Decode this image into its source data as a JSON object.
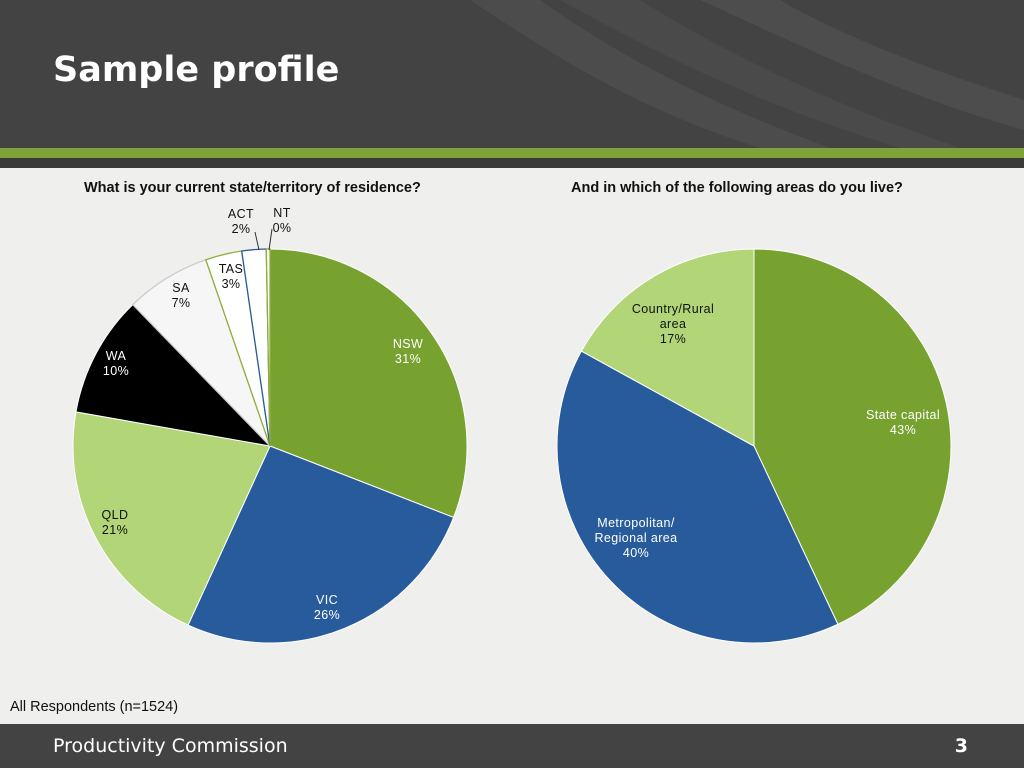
{
  "slide": {
    "title": "Sample profile",
    "footnote": "All Respondents (n=1524)",
    "footer_org": "Productivity Commission",
    "page_number": "3"
  },
  "chart_data": [
    {
      "type": "pie",
      "title": "What is your current state/territory of residence?",
      "start_angle_deg": 0,
      "direction": "clockwise",
      "slices": [
        {
          "label": "NSW",
          "value": 31,
          "display": "31%",
          "color": "#78a22f"
        },
        {
          "label": "VIC",
          "value": 26,
          "display": "26%",
          "color": "#275b9b"
        },
        {
          "label": "QLD",
          "value": 21,
          "display": "21%",
          "color": "#b2d677"
        },
        {
          "label": "WA",
          "value": 10,
          "display": "10%",
          "color": "#000000"
        },
        {
          "label": "SA",
          "value": 7,
          "display": "7%",
          "color": "#f6f6f6"
        },
        {
          "label": "TAS",
          "value": 3,
          "display": "3%",
          "color": "#ffffff"
        },
        {
          "label": "ACT",
          "value": 2,
          "display": "2%",
          "color": "#ffffff"
        },
        {
          "label": "NT",
          "value": 0.3,
          "display": "0%",
          "color": "#ffffff"
        }
      ]
    },
    {
      "type": "pie",
      "title": "And in which of the following areas do you live?",
      "start_angle_deg": 0,
      "direction": "clockwise",
      "slices": [
        {
          "label": "State capital",
          "value": 43,
          "display": "43%",
          "color": "#78a22f"
        },
        {
          "label": "Metropolitan/ Regional area",
          "value": 40,
          "display": "40%",
          "color": "#275b9b"
        },
        {
          "label": "Country/Rural area",
          "value": 17,
          "display": "17%",
          "color": "#b2d677"
        }
      ]
    }
  ]
}
